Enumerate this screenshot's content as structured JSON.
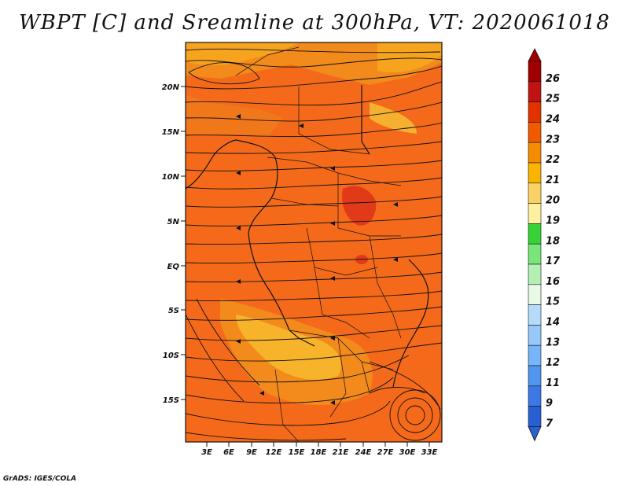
{
  "title": "WBPT [C] and Sreamline at 300hPa, VT: 2020061018",
  "credit": "GrADS: IGES/COLA",
  "map": {
    "lat_labels": [
      "20N",
      "15N",
      "10N",
      "5N",
      "EQ",
      "5S",
      "10S",
      "15S"
    ],
    "lon_labels": [
      "3E",
      "6E",
      "9E",
      "12E",
      "15E",
      "18E",
      "21E",
      "24E",
      "27E",
      "30E",
      "33E"
    ]
  },
  "colorbar": {
    "labels": [
      "26",
      "25",
      "24",
      "23",
      "22",
      "21",
      "20",
      "19",
      "18",
      "17",
      "16",
      "15",
      "14",
      "13",
      "12",
      "11",
      "9",
      "7"
    ],
    "colors": [
      "#a00000",
      "#c01414",
      "#e13200",
      "#f05a00",
      "#f58c00",
      "#fab400",
      "#fad264",
      "#fff0a0",
      "#37d237",
      "#78e678",
      "#b4f0b4",
      "#e6fae6",
      "#b4dcfa",
      "#96c8fa",
      "#78b4fa",
      "#5096f0",
      "#3c78e6",
      "#2860d2"
    ]
  }
}
